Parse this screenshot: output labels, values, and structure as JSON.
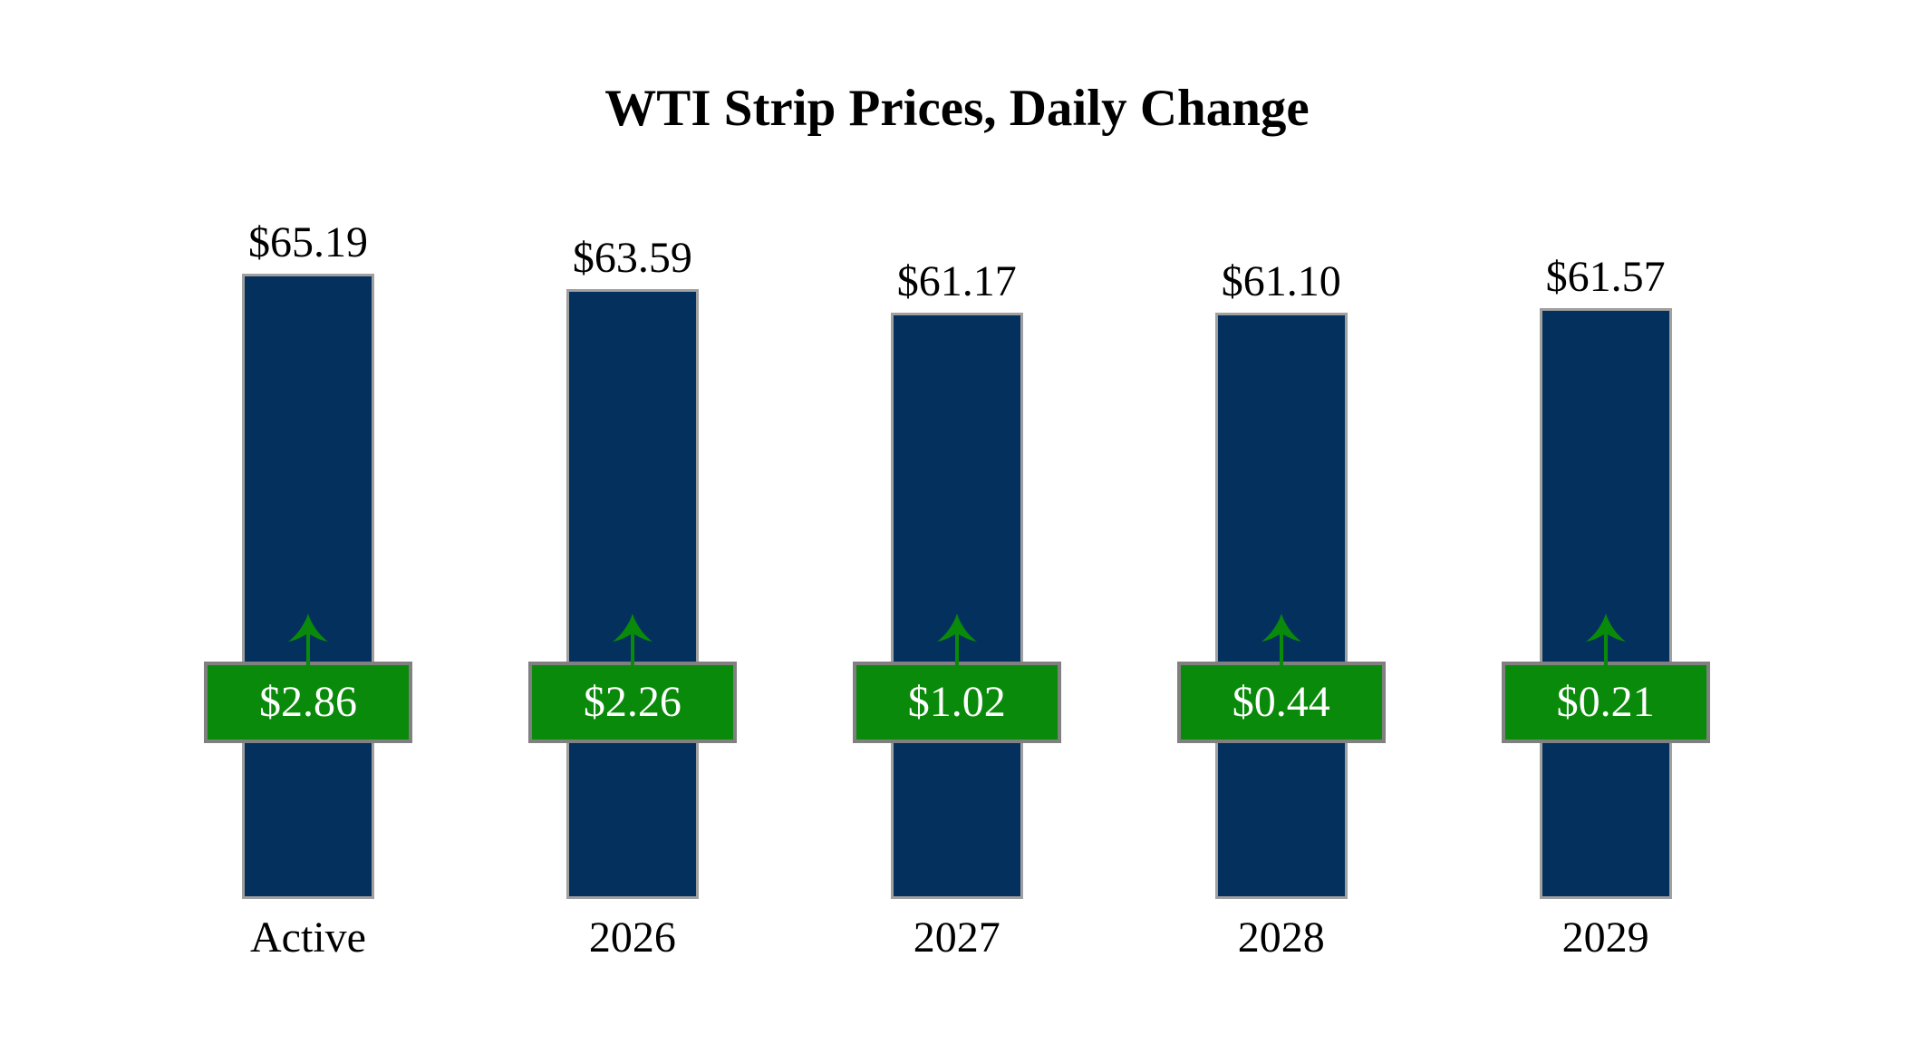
{
  "title": "WTI Strip Prices, Daily Change",
  "chart_data": {
    "type": "bar",
    "title": "WTI Strip Prices, Daily Change",
    "categories": [
      "Active",
      "2026",
      "2027",
      "2028",
      "2029"
    ],
    "series": [
      {
        "name": "Strip Price",
        "values": [
          65.19,
          63.59,
          61.17,
          61.1,
          61.57
        ],
        "labels": [
          "$65.19",
          "$63.59",
          "$61.17",
          "$61.10",
          "$61.57"
        ]
      },
      {
        "name": "Daily Change",
        "values": [
          2.86,
          2.26,
          1.02,
          0.44,
          0.21
        ],
        "labels": [
          "$2.86",
          "$2.26",
          "$1.02",
          "$0.44",
          "$0.21"
        ]
      }
    ],
    "xlabel": "",
    "ylabel": "",
    "ylim": [
      0,
      70
    ],
    "grid": false,
    "axes_visible": false,
    "legend": "none",
    "annotations": "green up-arrow above each daily-change badge"
  },
  "colors": {
    "background": "#ffffff",
    "bar_fill": "#04305e",
    "bar_border": "#a0a0a0",
    "badge_fill": "#0a8a0a",
    "badge_border": "#808080",
    "badge_text": "#ffffff",
    "arrow": "#0a8a0a",
    "label_text": "#000000"
  },
  "icons": {
    "up_arrow": "up-arrow-icon"
  }
}
